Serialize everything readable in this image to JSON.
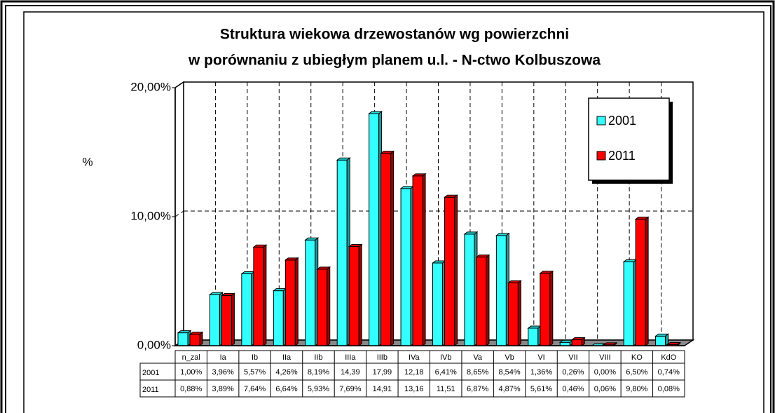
{
  "chart_data": {
    "type": "bar3d",
    "title": "Struktura wiekowa drzewostanów wg powierzchni",
    "subtitle": "w porównaniu z ubiegłym planem u.l. - N-ctwo Kolbuszowa",
    "y_label": "%",
    "categories": [
      "n_zal",
      "Ia",
      "Ib",
      "IIa",
      "IIb",
      "IIIa",
      "IIIb",
      "IVa",
      "IVb",
      "Va",
      "Vb",
      "VI",
      "VII",
      "VIII",
      "KO",
      "KdO"
    ],
    "series": [
      {
        "name": "2001",
        "color": "#33ffff",
        "values": [
          1.0,
          3.96,
          5.57,
          4.26,
          8.19,
          14.39,
          17.99,
          12.18,
          6.41,
          8.65,
          8.54,
          1.36,
          0.26,
          0.0,
          6.5,
          0.74
        ],
        "value_labels": [
          "1,00%",
          "3,96%",
          "5,57%",
          "4,26%",
          "8,19%",
          "14,39",
          "17,99",
          "12,18",
          "6,41%",
          "8,65%",
          "8,54%",
          "1,36%",
          "0,26%",
          "0,00%",
          "6,50%",
          "0,74%"
        ]
      },
      {
        "name": "2011",
        "color": "#ff0000",
        "values": [
          0.88,
          3.89,
          7.64,
          6.64,
          5.93,
          7.69,
          14.91,
          13.16,
          11.51,
          6.87,
          4.87,
          5.61,
          0.46,
          0.06,
          9.8,
          0.08
        ],
        "value_labels": [
          "0,88%",
          "3,89%",
          "7,64%",
          "6,64%",
          "5,93%",
          "7,69%",
          "14,91",
          "13,16",
          "11,51",
          "6,87%",
          "4,87%",
          "5,61%",
          "0,46%",
          "0,06%",
          "9,80%",
          "0,08%"
        ]
      }
    ],
    "ylim": [
      0,
      20
    ],
    "yticks": [
      {
        "value": 0,
        "label": "0,00%"
      },
      {
        "value": 10,
        "label": "10,00%"
      },
      {
        "value": 20,
        "label": "20,00%"
      }
    ],
    "grid": true,
    "legend": "upper right"
  }
}
